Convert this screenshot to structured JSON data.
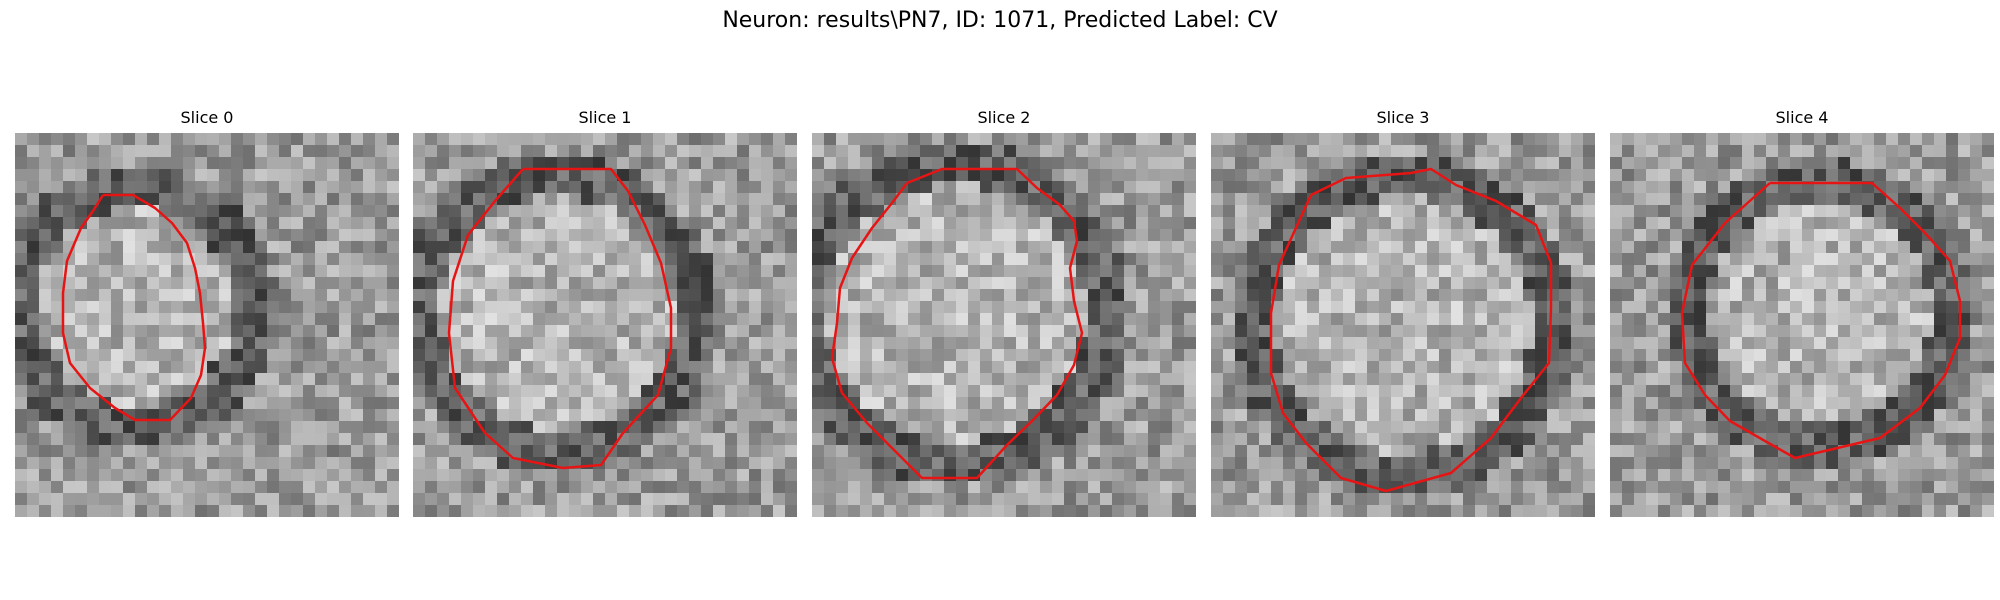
{
  "figure_title": "Neuron: results\\PN7, ID: 1071, Predicted Label: CV",
  "panels": [
    {
      "title": "Slice 0"
    },
    {
      "title": "Slice 1"
    },
    {
      "title": "Slice 2"
    },
    {
      "title": "Slice 3"
    },
    {
      "title": "Slice 4"
    }
  ],
  "contour_color": "#e81414"
}
